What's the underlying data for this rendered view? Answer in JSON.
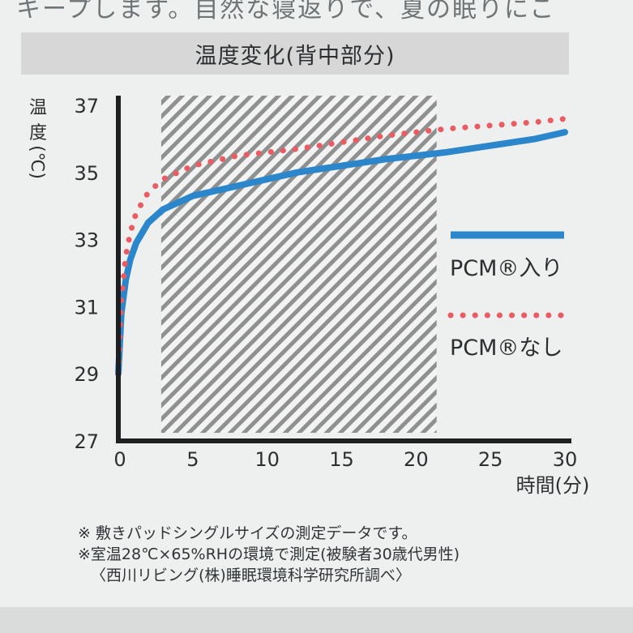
{
  "header_text": "キープします。自然な寝返りで、夏の眠りにこ",
  "chart_data": {
    "type": "line",
    "title": "温度変化(背中部分)",
    "ylabel": "温度(℃)",
    "ylabel_chars": [
      "温",
      "度",
      "(℃)"
    ],
    "xlabel": "時間(分)",
    "xlim": [
      0,
      30
    ],
    "ylim": [
      27,
      37
    ],
    "x_ticks": [
      0,
      5,
      10,
      15,
      20,
      25,
      30
    ],
    "y_ticks": [
      27,
      29,
      31,
      33,
      35,
      37
    ],
    "shaded_region": [
      2.5,
      21
    ],
    "legend_position": "right",
    "series": [
      {
        "name": "PCM®入り",
        "style": "solid",
        "color": "#2b86cc",
        "x": [
          0,
          0.2,
          0.5,
          0.8,
          1.2,
          1.6,
          2,
          3,
          4,
          5,
          6,
          8,
          10,
          12,
          15,
          18,
          20,
          22,
          25,
          28,
          30
        ],
        "y": [
          29,
          30.8,
          31.8,
          32.4,
          32.9,
          33.2,
          33.5,
          33.9,
          34.1,
          34.3,
          34.4,
          34.6,
          34.8,
          35,
          35.2,
          35.4,
          35.5,
          35.6,
          35.8,
          36,
          36.2
        ]
      },
      {
        "name": "PCM®なし",
        "style": "dotted",
        "color": "#ea5b62",
        "x": [
          0,
          0.2,
          0.5,
          0.8,
          1.2,
          1.6,
          2,
          3,
          4,
          5,
          6,
          8,
          10,
          12,
          15,
          18,
          20,
          22,
          25,
          28,
          30
        ],
        "y": [
          29,
          31.2,
          32.5,
          33.2,
          33.8,
          34.1,
          34.4,
          34.8,
          35,
          35.2,
          35.3,
          35.5,
          35.6,
          35.7,
          35.9,
          36.1,
          36.2,
          36.3,
          36.4,
          36.5,
          36.6
        ]
      }
    ]
  },
  "notes": [
    "※ 敷きパッドシングルサイズの測定データです。",
    "※室温28℃×65%RHの環境で測定(被験者30歳代男性)",
    "〈西川リビング(株)睡眠環境科学研究所調べ〉"
  ]
}
